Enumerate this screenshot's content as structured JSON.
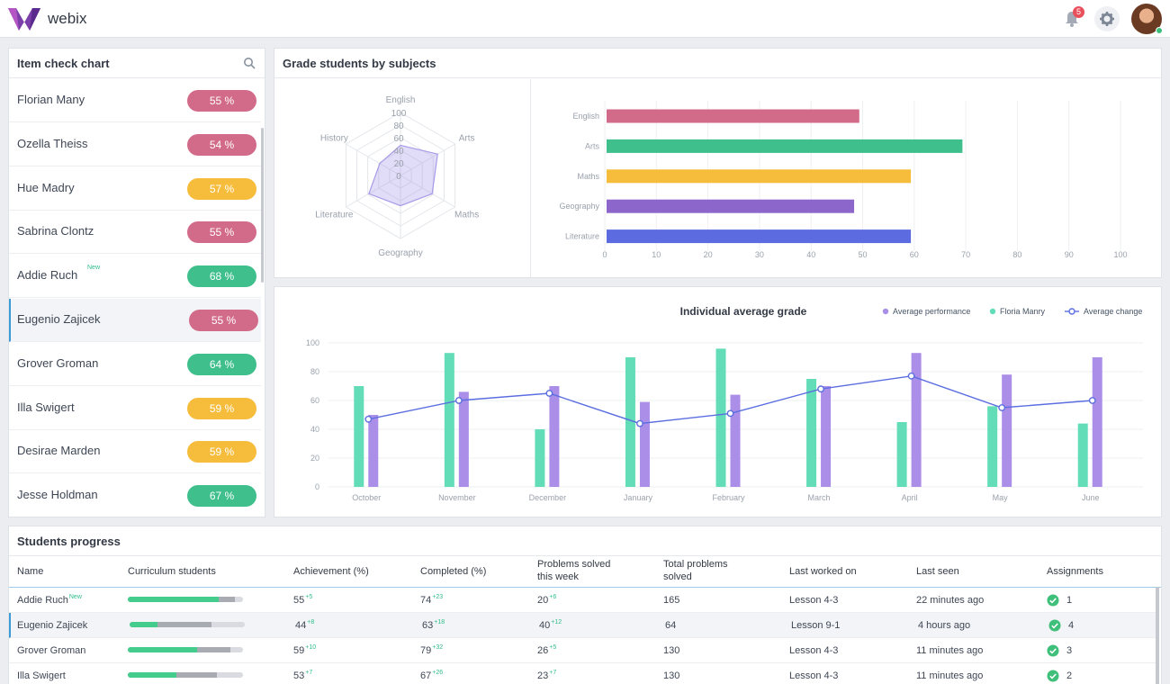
{
  "app": {
    "brand": "webix",
    "notifications": "5",
    "accent": "#3b9bd6"
  },
  "item_check": {
    "title": "Item check chart",
    "items": [
      {
        "name": "Florian Many",
        "value": "55 %",
        "color": "#d26b8a",
        "new": ""
      },
      {
        "name": "Ozella Theiss",
        "value": "54 %",
        "color": "#d26b8a",
        "new": ""
      },
      {
        "name": "Hue Madry",
        "value": "57 %",
        "color": "#f6bc3c",
        "new": ""
      },
      {
        "name": "Sabrina Clontz",
        "value": "55 %",
        "color": "#d26b8a",
        "new": ""
      },
      {
        "name": "Addie Ruch",
        "value": "68 %",
        "color": "#3ebf8c",
        "new": "New"
      },
      {
        "name": "Eugenio Zajicek",
        "value": "55 %",
        "color": "#d26b8a",
        "new": "",
        "selected": true
      },
      {
        "name": "Grover Groman",
        "value": "64 %",
        "color": "#3ebf8c",
        "new": ""
      },
      {
        "name": "Illa Swigert",
        "value": "59 %",
        "color": "#f6bc3c",
        "new": ""
      },
      {
        "name": "Desirae Marden",
        "value": "59 %",
        "color": "#f6bc3c",
        "new": ""
      },
      {
        "name": "Jesse Holdman",
        "value": "67 %",
        "color": "#3ebf8c",
        "new": ""
      }
    ]
  },
  "grades": {
    "title": "Grade students by subjects",
    "radar_ticks": [
      "100",
      "80",
      "60",
      "40",
      "20",
      "0"
    ]
  },
  "chart_data": [
    {
      "type": "radar",
      "axes": [
        "English",
        "Arts",
        "Maths",
        "Geography",
        "Literature",
        "History"
      ],
      "values": [
        48,
        68,
        58,
        48,
        58,
        38
      ],
      "ylim": [
        0,
        100
      ],
      "color": "#a89ae8"
    },
    {
      "type": "bar",
      "orientation": "horizontal",
      "categories": [
        "English",
        "Arts",
        "Maths",
        "Geography",
        "Literature"
      ],
      "values": [
        49,
        69,
        59,
        48,
        59
      ],
      "colors": [
        "#d26b8a",
        "#3ebf8c",
        "#f6bc3c",
        "#8d66cc",
        "#5d6be0"
      ],
      "xlim": [
        0,
        100
      ],
      "xticks": [
        "0",
        "10",
        "20",
        "30",
        "40",
        "50",
        "60",
        "70",
        "80",
        "90",
        "100"
      ],
      "grid": true
    },
    {
      "type": "bar",
      "title": "Individual average grade",
      "categories": [
        "October",
        "November",
        "December",
        "January",
        "February",
        "March",
        "April",
        "May",
        "June"
      ],
      "ylim": [
        0,
        100
      ],
      "yticks": [
        "0",
        "20",
        "40",
        "60",
        "80",
        "100"
      ],
      "legend_position": "top-right",
      "series": [
        {
          "name": "Floria Manry",
          "type": "bar",
          "color": "#63dcb8",
          "values": [
            70,
            93,
            40,
            90,
            96,
            75,
            45,
            56,
            44
          ]
        },
        {
          "name": "Average performance",
          "type": "bar",
          "color": "#ab8ee8",
          "values": [
            50,
            66,
            70,
            59,
            64,
            70,
            93,
            78,
            90
          ]
        },
        {
          "name": "Average change",
          "type": "line",
          "color": "#5b6ee0",
          "values": [
            47,
            60,
            65,
            44,
            51,
            68,
            77,
            55,
            60
          ]
        }
      ],
      "legend_order": [
        "Average performance",
        "Floria Manry",
        "Average change"
      ]
    }
  ],
  "progress": {
    "title": "Students progress",
    "columns": [
      {
        "l1": "Name",
        "l2": ""
      },
      {
        "l1": "Curriculum students",
        "l2": ""
      },
      {
        "l1": "Achievement (%)",
        "l2": ""
      },
      {
        "l1": "Completed (%)",
        "l2": ""
      },
      {
        "l1": "Problems solved",
        "l2": "this week"
      },
      {
        "l1": "Total problems",
        "l2": "solved"
      },
      {
        "l1": "Last worked on",
        "l2": ""
      },
      {
        "l1": "Last seen",
        "l2": ""
      },
      {
        "l1": "Assignments",
        "l2": ""
      }
    ],
    "rows": [
      {
        "name": "Addie Ruch",
        "new": "New",
        "cur_a": 0.79,
        "cur_b": 0.14,
        "ach": "55",
        "ach_d": "+5",
        "comp": "74",
        "comp_d": "+23",
        "week": "20",
        "week_d": "+6",
        "total": "165",
        "lesson": "Lesson 4-3",
        "seen": "22 minutes ago",
        "assign": "1"
      },
      {
        "name": "Eugenio Zajicek",
        "new": "",
        "cur_a": 0.24,
        "cur_b": 0.47,
        "ach": "44",
        "ach_d": "+8",
        "comp": "63",
        "comp_d": "+18",
        "week": "40",
        "week_d": "+12",
        "total": "64",
        "lesson": "Lesson 9-1",
        "seen": "4 hours ago",
        "assign": "4",
        "selected": true
      },
      {
        "name": "Grover Groman",
        "new": "",
        "cur_a": 0.6,
        "cur_b": 0.29,
        "ach": "59",
        "ach_d": "+10",
        "comp": "79",
        "comp_d": "+32",
        "week": "26",
        "week_d": "+5",
        "total": "130",
        "lesson": "Lesson 4-3",
        "seen": "11 minutes ago",
        "assign": "3"
      },
      {
        "name": "Illa Swigert",
        "new": "",
        "cur_a": 0.42,
        "cur_b": 0.35,
        "ach": "53",
        "ach_d": "+7",
        "comp": "67",
        "comp_d": "+26",
        "week": "23",
        "week_d": "+7",
        "total": "130",
        "lesson": "Lesson 4-3",
        "seen": "11 minutes ago",
        "assign": "2"
      }
    ]
  }
}
